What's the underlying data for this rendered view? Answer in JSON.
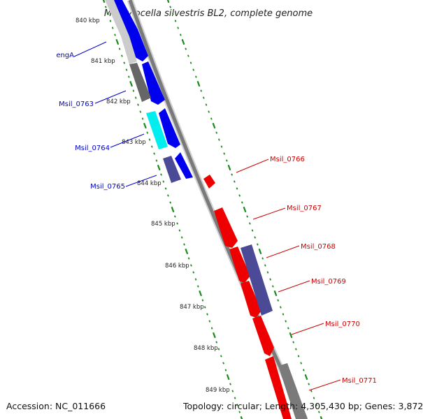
{
  "title": "Methylocella silvestris BL2, complete genome",
  "footer": {
    "accession": "Accession: NC_011666",
    "topology": "Topology: circular; Length: 4,305,430 bp; Genes: 3,872"
  },
  "colors": {
    "forward": "#0000ee",
    "reverse": "#ee0000",
    "purple": "#4a4a96",
    "grey": "#666666",
    "lightgrey": "#c8c8c8",
    "cyan": "#00eeee",
    "tick": "#1a8a1a"
  },
  "scale": {
    "unit": "kbp",
    "ticks": [
      "840 kbp",
      "841 kbp",
      "842 kbp",
      "843 kbp",
      "844 kbp",
      "845 kbp",
      "846 kbp",
      "847 kbp",
      "848 kbp",
      "849 kbp"
    ]
  },
  "labels": {
    "left": [
      "engA",
      "Msil_0763",
      "Msil_0764",
      "Msil_0765"
    ],
    "right": [
      "Msil_0766",
      "Msil_0767",
      "Msil_0768",
      "Msil_0769",
      "Msil_0770",
      "Msil_0771"
    ]
  }
}
